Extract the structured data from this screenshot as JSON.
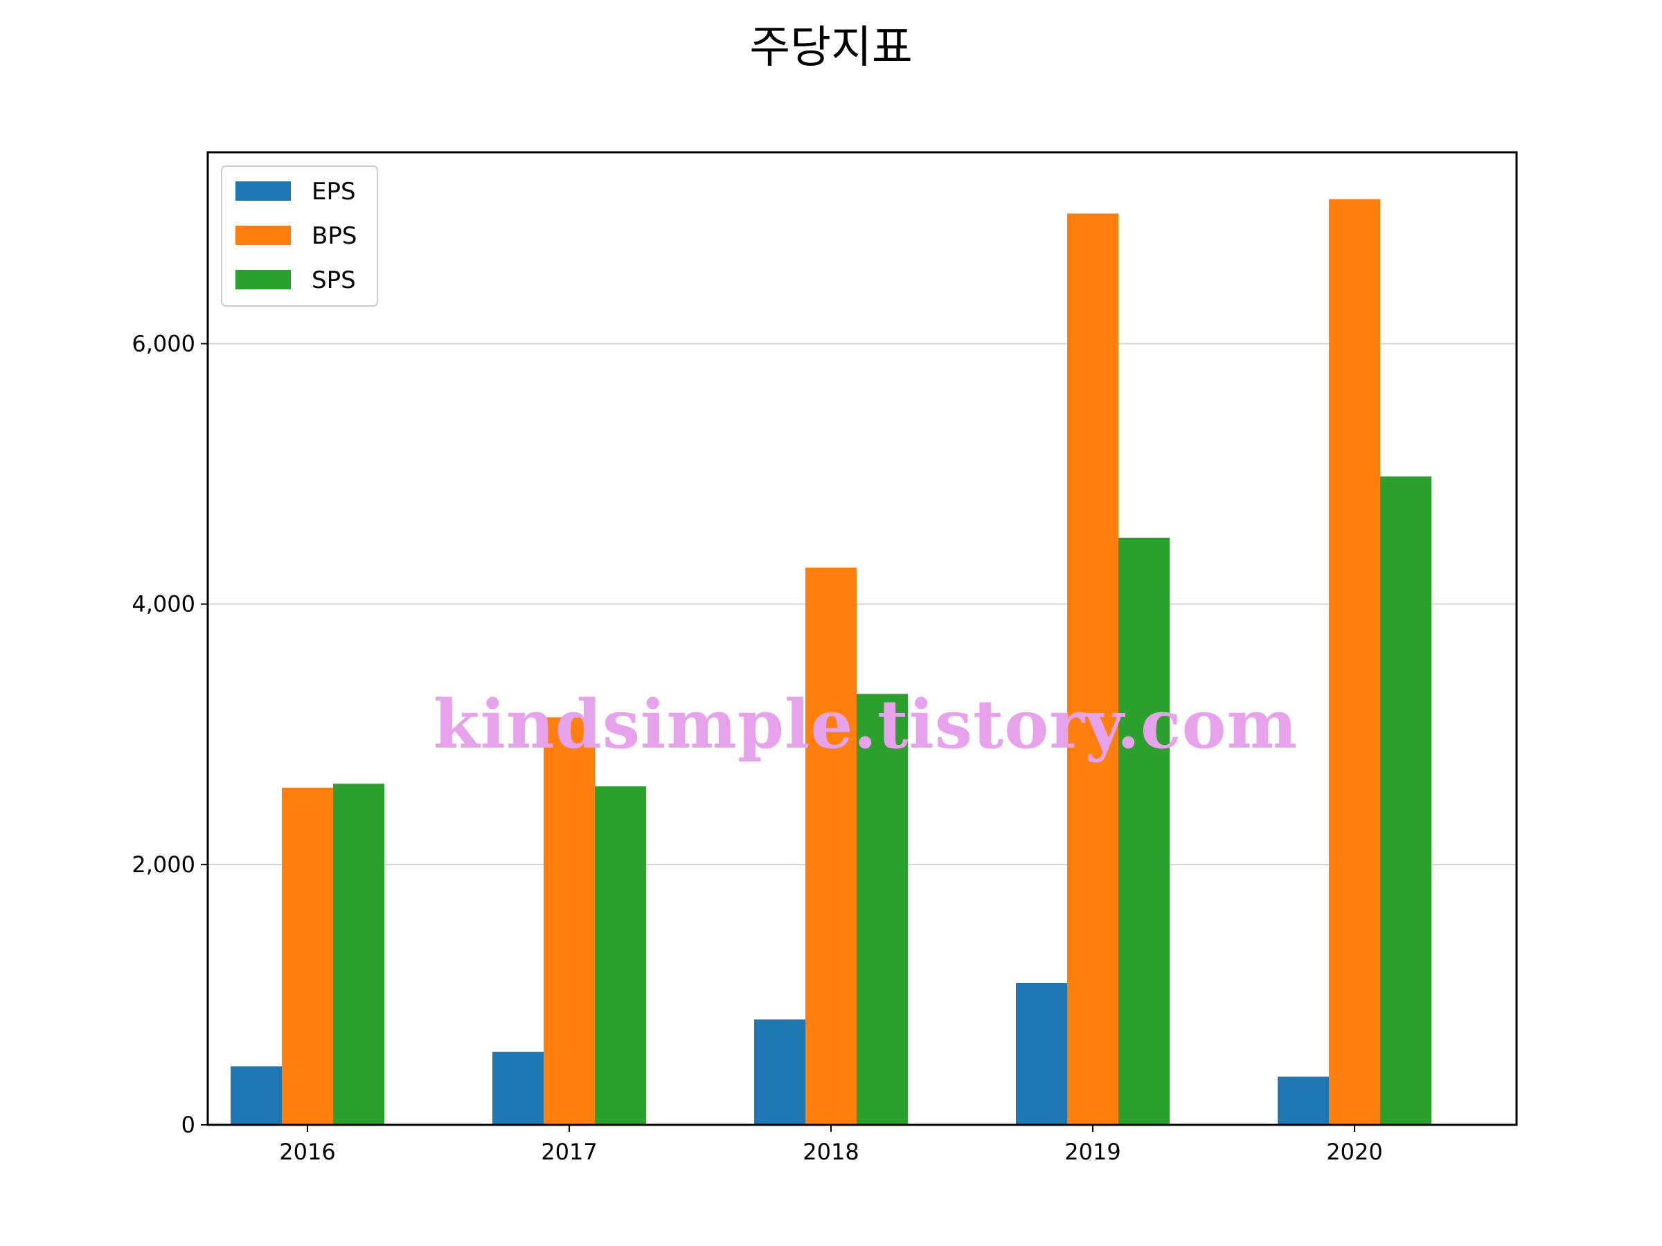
{
  "chart_data": {
    "type": "bar",
    "title": "주당지표",
    "categories": [
      "2016",
      "2017",
      "2018",
      "2019",
      "2020"
    ],
    "series": [
      {
        "name": "EPS",
        "color": "#1f77b4",
        "values": [
          450,
          560,
          810,
          1090,
          370
        ]
      },
      {
        "name": "BPS",
        "color": "#ff7f0e",
        "values": [
          2590,
          3130,
          4280,
          7000,
          7110
        ]
      },
      {
        "name": "SPS",
        "color": "#2ca02c",
        "values": [
          2620,
          2600,
          3310,
          4510,
          4980
        ]
      }
    ],
    "ylim": [
      0,
      7470
    ],
    "yticks": [
      0,
      2000,
      4000,
      6000
    ],
    "ytick_labels": [
      "0",
      "2,000",
      "4,000",
      "6,000"
    ],
    "grid": "horizontal",
    "legend_position": "top-left",
    "xlabel": "",
    "ylabel": ""
  },
  "watermark": "kindsimple.tistory.com"
}
